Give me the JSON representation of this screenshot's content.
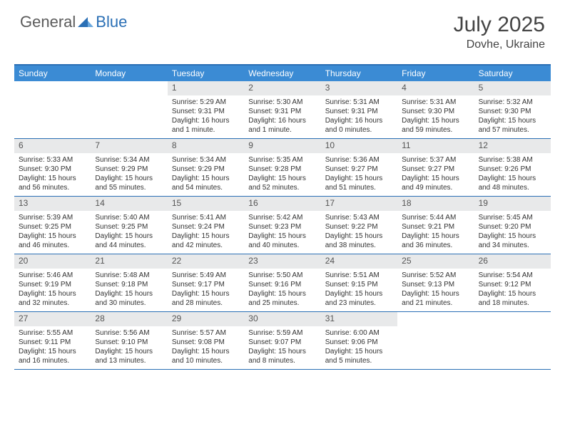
{
  "brand": {
    "general": "General",
    "blue": "Blue"
  },
  "title": "July 2025",
  "location": "Dovhe, Ukraine",
  "colors": {
    "header_bg": "#3b8bd4",
    "border": "#2a6fb5",
    "daynum_bg": "#e8e9ea",
    "text": "#333333",
    "title": "#444444"
  },
  "weekdays": [
    "Sunday",
    "Monday",
    "Tuesday",
    "Wednesday",
    "Thursday",
    "Friday",
    "Saturday"
  ],
  "weeks": [
    [
      null,
      null,
      {
        "n": "1",
        "sr": "Sunrise: 5:29 AM",
        "ss": "Sunset: 9:31 PM",
        "dl1": "Daylight: 16 hours",
        "dl2": "and 1 minute."
      },
      {
        "n": "2",
        "sr": "Sunrise: 5:30 AM",
        "ss": "Sunset: 9:31 PM",
        "dl1": "Daylight: 16 hours",
        "dl2": "and 1 minute."
      },
      {
        "n": "3",
        "sr": "Sunrise: 5:31 AM",
        "ss": "Sunset: 9:31 PM",
        "dl1": "Daylight: 16 hours",
        "dl2": "and 0 minutes."
      },
      {
        "n": "4",
        "sr": "Sunrise: 5:31 AM",
        "ss": "Sunset: 9:30 PM",
        "dl1": "Daylight: 15 hours",
        "dl2": "and 59 minutes."
      },
      {
        "n": "5",
        "sr": "Sunrise: 5:32 AM",
        "ss": "Sunset: 9:30 PM",
        "dl1": "Daylight: 15 hours",
        "dl2": "and 57 minutes."
      }
    ],
    [
      {
        "n": "6",
        "sr": "Sunrise: 5:33 AM",
        "ss": "Sunset: 9:30 PM",
        "dl1": "Daylight: 15 hours",
        "dl2": "and 56 minutes."
      },
      {
        "n": "7",
        "sr": "Sunrise: 5:34 AM",
        "ss": "Sunset: 9:29 PM",
        "dl1": "Daylight: 15 hours",
        "dl2": "and 55 minutes."
      },
      {
        "n": "8",
        "sr": "Sunrise: 5:34 AM",
        "ss": "Sunset: 9:29 PM",
        "dl1": "Daylight: 15 hours",
        "dl2": "and 54 minutes."
      },
      {
        "n": "9",
        "sr": "Sunrise: 5:35 AM",
        "ss": "Sunset: 9:28 PM",
        "dl1": "Daylight: 15 hours",
        "dl2": "and 52 minutes."
      },
      {
        "n": "10",
        "sr": "Sunrise: 5:36 AM",
        "ss": "Sunset: 9:27 PM",
        "dl1": "Daylight: 15 hours",
        "dl2": "and 51 minutes."
      },
      {
        "n": "11",
        "sr": "Sunrise: 5:37 AM",
        "ss": "Sunset: 9:27 PM",
        "dl1": "Daylight: 15 hours",
        "dl2": "and 49 minutes."
      },
      {
        "n": "12",
        "sr": "Sunrise: 5:38 AM",
        "ss": "Sunset: 9:26 PM",
        "dl1": "Daylight: 15 hours",
        "dl2": "and 48 minutes."
      }
    ],
    [
      {
        "n": "13",
        "sr": "Sunrise: 5:39 AM",
        "ss": "Sunset: 9:25 PM",
        "dl1": "Daylight: 15 hours",
        "dl2": "and 46 minutes."
      },
      {
        "n": "14",
        "sr": "Sunrise: 5:40 AM",
        "ss": "Sunset: 9:25 PM",
        "dl1": "Daylight: 15 hours",
        "dl2": "and 44 minutes."
      },
      {
        "n": "15",
        "sr": "Sunrise: 5:41 AM",
        "ss": "Sunset: 9:24 PM",
        "dl1": "Daylight: 15 hours",
        "dl2": "and 42 minutes."
      },
      {
        "n": "16",
        "sr": "Sunrise: 5:42 AM",
        "ss": "Sunset: 9:23 PM",
        "dl1": "Daylight: 15 hours",
        "dl2": "and 40 minutes."
      },
      {
        "n": "17",
        "sr": "Sunrise: 5:43 AM",
        "ss": "Sunset: 9:22 PM",
        "dl1": "Daylight: 15 hours",
        "dl2": "and 38 minutes."
      },
      {
        "n": "18",
        "sr": "Sunrise: 5:44 AM",
        "ss": "Sunset: 9:21 PM",
        "dl1": "Daylight: 15 hours",
        "dl2": "and 36 minutes."
      },
      {
        "n": "19",
        "sr": "Sunrise: 5:45 AM",
        "ss": "Sunset: 9:20 PM",
        "dl1": "Daylight: 15 hours",
        "dl2": "and 34 minutes."
      }
    ],
    [
      {
        "n": "20",
        "sr": "Sunrise: 5:46 AM",
        "ss": "Sunset: 9:19 PM",
        "dl1": "Daylight: 15 hours",
        "dl2": "and 32 minutes."
      },
      {
        "n": "21",
        "sr": "Sunrise: 5:48 AM",
        "ss": "Sunset: 9:18 PM",
        "dl1": "Daylight: 15 hours",
        "dl2": "and 30 minutes."
      },
      {
        "n": "22",
        "sr": "Sunrise: 5:49 AM",
        "ss": "Sunset: 9:17 PM",
        "dl1": "Daylight: 15 hours",
        "dl2": "and 28 minutes."
      },
      {
        "n": "23",
        "sr": "Sunrise: 5:50 AM",
        "ss": "Sunset: 9:16 PM",
        "dl1": "Daylight: 15 hours",
        "dl2": "and 25 minutes."
      },
      {
        "n": "24",
        "sr": "Sunrise: 5:51 AM",
        "ss": "Sunset: 9:15 PM",
        "dl1": "Daylight: 15 hours",
        "dl2": "and 23 minutes."
      },
      {
        "n": "25",
        "sr": "Sunrise: 5:52 AM",
        "ss": "Sunset: 9:13 PM",
        "dl1": "Daylight: 15 hours",
        "dl2": "and 21 minutes."
      },
      {
        "n": "26",
        "sr": "Sunrise: 5:54 AM",
        "ss": "Sunset: 9:12 PM",
        "dl1": "Daylight: 15 hours",
        "dl2": "and 18 minutes."
      }
    ],
    [
      {
        "n": "27",
        "sr": "Sunrise: 5:55 AM",
        "ss": "Sunset: 9:11 PM",
        "dl1": "Daylight: 15 hours",
        "dl2": "and 16 minutes."
      },
      {
        "n": "28",
        "sr": "Sunrise: 5:56 AM",
        "ss": "Sunset: 9:10 PM",
        "dl1": "Daylight: 15 hours",
        "dl2": "and 13 minutes."
      },
      {
        "n": "29",
        "sr": "Sunrise: 5:57 AM",
        "ss": "Sunset: 9:08 PM",
        "dl1": "Daylight: 15 hours",
        "dl2": "and 10 minutes."
      },
      {
        "n": "30",
        "sr": "Sunrise: 5:59 AM",
        "ss": "Sunset: 9:07 PM",
        "dl1": "Daylight: 15 hours",
        "dl2": "and 8 minutes."
      },
      {
        "n": "31",
        "sr": "Sunrise: 6:00 AM",
        "ss": "Sunset: 9:06 PM",
        "dl1": "Daylight: 15 hours",
        "dl2": "and 5 minutes."
      },
      null,
      null
    ]
  ]
}
